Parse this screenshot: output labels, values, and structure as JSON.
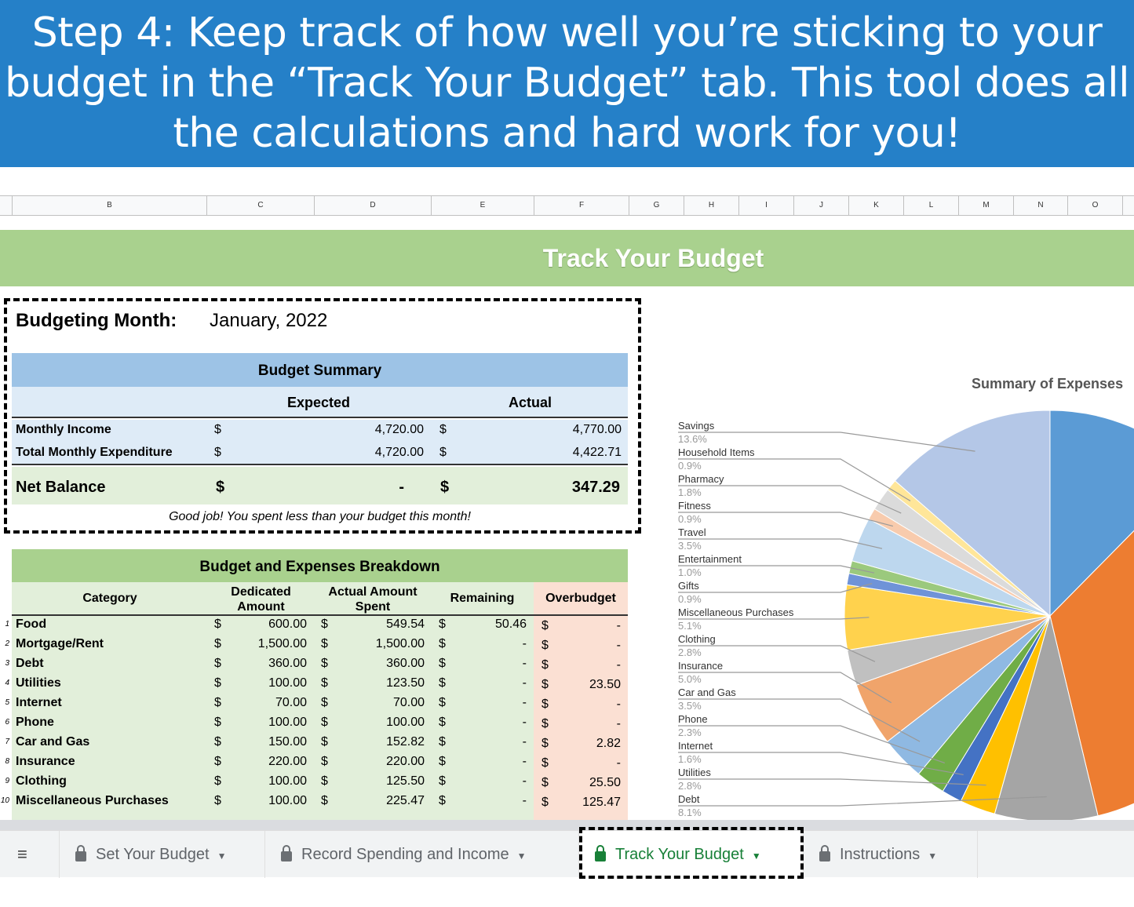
{
  "banner": {
    "text": "Step 4: Keep track of how well you’re sticking to your budget in the “Track Your Budget” tab. This tool does all the calculations and hard work for you!"
  },
  "columns": [
    "B",
    "C",
    "D",
    "E",
    "F",
    "G",
    "H",
    "I",
    "J",
    "K",
    "L",
    "M",
    "N",
    "O"
  ],
  "sheet_title": "Track Your Budget",
  "month": {
    "label": "Budgeting Month:",
    "value": "January, 2022"
  },
  "summary": {
    "title": "Budget Summary",
    "expected_label": "Expected",
    "actual_label": "Actual",
    "rows": [
      {
        "label": "Monthly Income",
        "cur1": "$",
        "expected": "4,720.00",
        "cur2": "$",
        "actual": "4,770.00"
      },
      {
        "label": "Total Monthly Expenditure",
        "cur1": "$",
        "expected": "4,720.00",
        "cur2": "$",
        "actual": "4,422.71"
      }
    ],
    "net": {
      "label": "Net Balance",
      "cur1": "$",
      "expected": "-",
      "cur2": "$",
      "actual": "347.29"
    },
    "message": "Good job! You spent less than your budget this month!"
  },
  "breakdown": {
    "title": "Budget and Expenses Breakdown",
    "headers": [
      "Category",
      "Dedicated Amount",
      "Actual Amount Spent",
      "Remaining",
      "Overbudget"
    ],
    "rows": [
      {
        "n": "1",
        "cat": "Food",
        "ded": "600.00",
        "act": "549.54",
        "rem": "50.46",
        "over": "-"
      },
      {
        "n": "2",
        "cat": "Mortgage/Rent",
        "ded": "1,500.00",
        "act": "1,500.00",
        "rem": "-",
        "over": "-"
      },
      {
        "n": "3",
        "cat": "Debt",
        "ded": "360.00",
        "act": "360.00",
        "rem": "-",
        "over": "-"
      },
      {
        "n": "4",
        "cat": "Utilities",
        "ded": "100.00",
        "act": "123.50",
        "rem": "-",
        "over": "23.50"
      },
      {
        "n": "5",
        "cat": "Internet",
        "ded": "70.00",
        "act": "70.00",
        "rem": "-",
        "over": "-"
      },
      {
        "n": "6",
        "cat": "Phone",
        "ded": "100.00",
        "act": "100.00",
        "rem": "-",
        "over": "-"
      },
      {
        "n": "7",
        "cat": "Car and Gas",
        "ded": "150.00",
        "act": "152.82",
        "rem": "-",
        "over": "2.82"
      },
      {
        "n": "8",
        "cat": "Insurance",
        "ded": "220.00",
        "act": "220.00",
        "rem": "-",
        "over": "-"
      },
      {
        "n": "9",
        "cat": "Clothing",
        "ded": "100.00",
        "act": "125.50",
        "rem": "-",
        "over": "25.50"
      },
      {
        "n": "10",
        "cat": "Miscellaneous Purchases",
        "ded": "100.00",
        "act": "225.47",
        "rem": "-",
        "over": "125.47"
      }
    ],
    "currency": "$"
  },
  "chart_data": {
    "type": "pie",
    "title": "Summary of Expenses",
    "slices": [
      {
        "name": "Food",
        "value": 12.4,
        "color": "#5b9bd5"
      },
      {
        "name": "Mortgage/Rent",
        "value": 33.9,
        "color": "#ed7d31"
      },
      {
        "name": "Debt",
        "label": "Debt",
        "pct": "8.1%",
        "value": 8.1,
        "color": "#a5a5a5"
      },
      {
        "name": "Utilities",
        "label": "Utilities",
        "pct": "2.8%",
        "value": 2.8,
        "color": "#ffc000"
      },
      {
        "name": "Internet",
        "label": "Internet",
        "pct": "1.6%",
        "value": 1.6,
        "color": "#4472c4"
      },
      {
        "name": "Phone",
        "label": "Phone",
        "pct": "2.3%",
        "value": 2.3,
        "color": "#70ad47"
      },
      {
        "name": "Car and Gas",
        "label": "Car and Gas",
        "pct": "3.5%",
        "value": 3.5,
        "color": "#8fb9e2"
      },
      {
        "name": "Insurance",
        "label": "Insurance",
        "pct": "5.0%",
        "value": 5.0,
        "color": "#f0a46b"
      },
      {
        "name": "Clothing",
        "label": "Clothing",
        "pct": "2.8%",
        "value": 2.8,
        "color": "#c0c0c0"
      },
      {
        "name": "Miscellaneous Purchases",
        "label": "Miscellaneous Purchases",
        "pct": "5.1%",
        "value": 5.1,
        "color": "#ffd24d"
      },
      {
        "name": "Gifts",
        "label": "Gifts",
        "pct": "0.9%",
        "value": 0.9,
        "color": "#6f93d8"
      },
      {
        "name": "Entertainment",
        "label": "Entertainment",
        "pct": "1.0%",
        "value": 1.0,
        "color": "#9bc97d"
      },
      {
        "name": "Travel",
        "label": "Travel",
        "pct": "3.5%",
        "value": 3.5,
        "color": "#bdd7ee"
      },
      {
        "name": "Fitness",
        "label": "Fitness",
        "pct": "0.9%",
        "value": 0.9,
        "color": "#f8cbad"
      },
      {
        "name": "Pharmacy",
        "label": "Pharmacy",
        "pct": "1.8%",
        "value": 1.8,
        "color": "#dbdbdb"
      },
      {
        "name": "Household Items",
        "label": "Household Items",
        "pct": "0.9%",
        "value": 0.9,
        "color": "#ffe699"
      },
      {
        "name": "Savings",
        "label": "Savings",
        "pct": "13.6%",
        "value": 13.6,
        "color": "#b4c7e7"
      }
    ]
  },
  "tabs": [
    {
      "label": "Set Your Budget",
      "active": false
    },
    {
      "label": "Record Spending and Income",
      "active": false
    },
    {
      "label": "Track Your Budget",
      "active": true
    },
    {
      "label": "Instructions",
      "active": false
    }
  ],
  "colors": {
    "banner": "#2580c8",
    "title_band": "#a9d18e",
    "summary_header": "#9dc3e6",
    "active_tab": "#188038"
  }
}
